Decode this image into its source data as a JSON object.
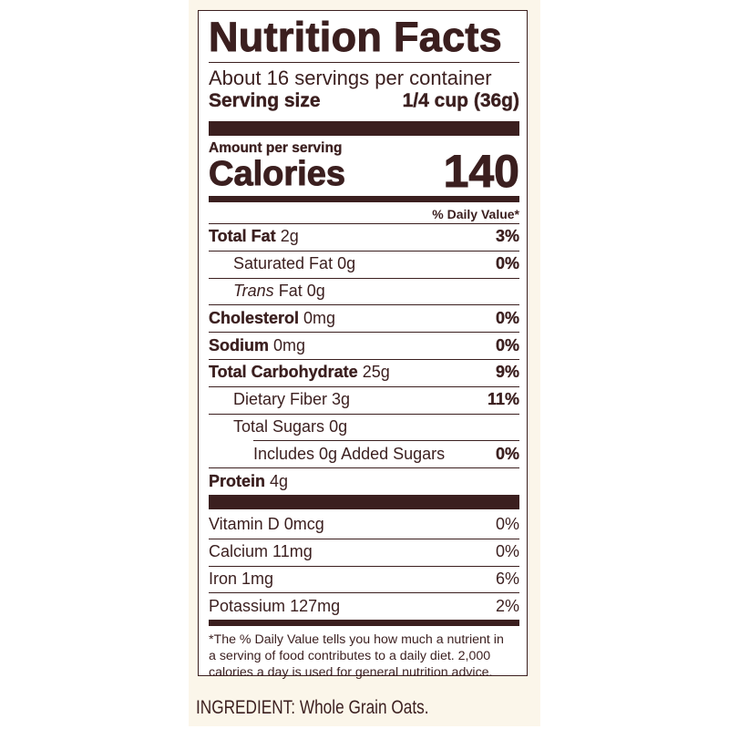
{
  "title": "Nutrition Facts",
  "servings_per_container": "About 16 servings per container",
  "serving_size_label": "Serving size",
  "serving_size_value": "1/4 cup (36g)",
  "amount_per_serving": "Amount per serving",
  "calories_label": "Calories",
  "calories_value": "140",
  "daily_value_header": "% Daily Value*",
  "nutrients": [
    {
      "name": "Total Fat",
      "amount": "2g",
      "dv": "3%"
    },
    {
      "name": "Saturated Fat",
      "amount": "0g",
      "dv": "0%"
    },
    {
      "name": "Trans",
      "name_rest": "Fat",
      "amount": "0g",
      "dv": ""
    },
    {
      "name": "Cholesterol",
      "amount": "0mg",
      "dv": "0%"
    },
    {
      "name": "Sodium",
      "amount": "0mg",
      "dv": "0%"
    },
    {
      "name": "Total Carbohydrate",
      "amount": "25g",
      "dv": "9%"
    },
    {
      "name": "Dietary Fiber",
      "amount": "3g",
      "dv": "11%"
    },
    {
      "name": "Total Sugars",
      "amount": "0g",
      "dv": ""
    },
    {
      "name": "Includes 0g Added Sugars",
      "amount": "",
      "dv": "0%"
    },
    {
      "name": "Protein",
      "amount": "4g",
      "dv": ""
    }
  ],
  "vitamins": [
    {
      "name": "Vitamin D",
      "amount": "0mcg",
      "dv": "0%"
    },
    {
      "name": "Calcium",
      "amount": "11mg",
      "dv": "0%"
    },
    {
      "name": "Iron",
      "amount": "1mg",
      "dv": "6%"
    },
    {
      "name": "Potassium",
      "amount": "127mg",
      "dv": "2%"
    }
  ],
  "footnote": [
    "*The % Daily Value tells you how much a nutrient in",
    "a serving of food contributes to a daily diet. 2,000",
    "calories a day is used for general nutrition advice."
  ],
  "ingredients": "INGREDIENT: Whole Grain Oats.",
  "colors": {
    "ink": "#3b1f1f",
    "panel": "#fbf6ea"
  }
}
